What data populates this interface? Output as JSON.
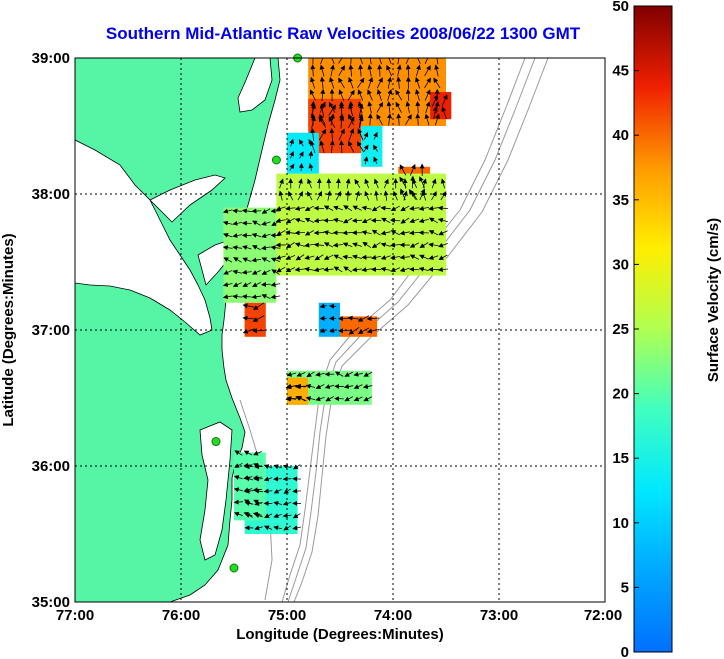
{
  "title": "Southern Mid-Atlantic Raw Velocities 2008/06/22 1300 GMT",
  "xlabel": "Longitude (Degrees:Minutes)",
  "ylabel": "Latitude (Degrees:Minutes)",
  "x_ticks": [
    "77:00",
    "76:00",
    "75:00",
    "74:00",
    "73:00",
    "72:00"
  ],
  "y_ticks": [
    "39:00",
    "38:00",
    "37:00",
    "36:00",
    "35:00"
  ],
  "colorbar": {
    "label": "Surface Velocity (cm/s)",
    "ticks": [
      "50",
      "45",
      "40",
      "35",
      "30",
      "25",
      "20",
      "15",
      "10",
      "5",
      "0"
    ],
    "min": 0,
    "max": 50,
    "colormap": "jet"
  },
  "colors": {
    "land": "#55f5a5",
    "title": "#0000ee",
    "grid": "#000000",
    "coast": "#000000",
    "bathymetry": "#9a9a9a",
    "arrow": "#000000",
    "station": "#22dd22"
  },
  "map_extent": {
    "lon": [
      -77,
      -72
    ],
    "lat": [
      35,
      39
    ]
  },
  "grid": "dotted",
  "stations": [
    {
      "lon": -74.9,
      "lat": 39.0
    },
    {
      "lon": -75.1,
      "lat": 38.25
    },
    {
      "lon": -75.67,
      "lat": 36.18
    },
    {
      "lon": -75.5,
      "lat": 35.25
    }
  ],
  "chart_data": {
    "type": "heatmap",
    "title": "Southern Mid-Atlantic Raw Velocities 2008/06/22 1300 GMT",
    "xlabel": "Longitude (Degrees:Minutes)",
    "ylabel": "Latitude (Degrees:Minutes)",
    "xlim": [
      -77,
      -72
    ],
    "ylim": [
      35,
      39
    ],
    "units": "cm/s",
    "value_range": [
      0,
      50
    ],
    "regions": [
      {
        "lon": [
          -74.8,
          -73.5
        ],
        "lat": [
          38.5,
          39.0
        ],
        "speed": 38
      },
      {
        "lon": [
          -74.8,
          -74.3
        ],
        "lat": [
          38.3,
          38.7
        ],
        "speed": 42
      },
      {
        "lon": [
          -73.65,
          -73.45
        ],
        "lat": [
          38.55,
          38.75
        ],
        "speed": 44
      },
      {
        "lon": [
          -73.95,
          -73.65
        ],
        "lat": [
          37.95,
          38.2
        ],
        "speed": 40
      },
      {
        "lon": [
          -75.1,
          -73.5
        ],
        "lat": [
          37.4,
          38.15
        ],
        "speed": 26
      },
      {
        "lon": [
          -75.6,
          -75.1
        ],
        "lat": [
          37.2,
          37.9
        ],
        "speed": 23
      },
      {
        "lon": [
          -74.7,
          -74.5
        ],
        "lat": [
          36.95,
          37.2
        ],
        "speed": 7
      },
      {
        "lon": [
          -75.4,
          -75.2
        ],
        "lat": [
          36.95,
          37.2
        ],
        "speed": 42
      },
      {
        "lon": [
          -74.5,
          -74.15
        ],
        "lat": [
          36.95,
          37.1
        ],
        "speed": 40
      },
      {
        "lon": [
          -74.3,
          -74.1
        ],
        "lat": [
          38.2,
          38.5
        ],
        "speed": 14
      },
      {
        "lon": [
          -75.0,
          -74.7
        ],
        "lat": [
          38.15,
          38.45
        ],
        "speed": 13
      },
      {
        "lon": [
          -75.0,
          -74.2
        ],
        "lat": [
          36.45,
          36.7
        ],
        "speed": 22
      },
      {
        "lon": [
          -75.0,
          -74.8
        ],
        "lat": [
          36.45,
          36.65
        ],
        "speed": 36
      },
      {
        "lon": [
          -75.4,
          -74.9
        ],
        "lat": [
          35.5,
          36.0
        ],
        "speed": 17
      },
      {
        "lon": [
          -75.5,
          -75.2
        ],
        "lat": [
          35.6,
          36.1
        ],
        "speed": 20
      }
    ]
  }
}
